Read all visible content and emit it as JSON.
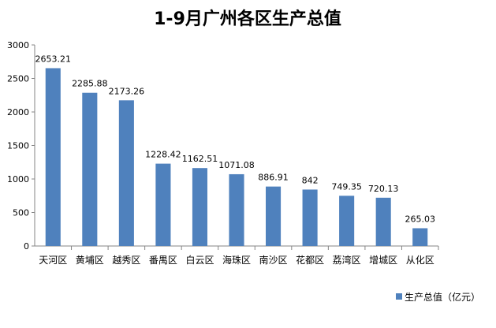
{
  "chart_data": {
    "type": "bar",
    "title": "1-9月广州各区生产总值",
    "categories": [
      "天河区",
      "黄埔区",
      "越秀区",
      "番禺区",
      "白云区",
      "海珠区",
      "南沙区",
      "花都区",
      "荔湾区",
      "增城区",
      "从化区"
    ],
    "series": [
      {
        "name": "生产总值（亿元）",
        "values": [
          2653.21,
          2285.88,
          2173.26,
          1228.42,
          1162.51,
          1071.08,
          886.91,
          842,
          749.35,
          720.13,
          265.03
        ],
        "labels": [
          "2653.21",
          "2285.88",
          "2173.26",
          "1228.42",
          "1162.51",
          "1071.08",
          "886.91",
          "842",
          "749.35",
          "720.13",
          "265.03"
        ]
      }
    ],
    "yticks": [
      "0",
      "500",
      "1000",
      "1500",
      "2000",
      "2500",
      "3000"
    ],
    "ylim": [
      0,
      3000
    ],
    "grid": false,
    "legend_position": "bottom-right",
    "bar_color": "#4F81BD",
    "xlabel": "",
    "ylabel": ""
  }
}
